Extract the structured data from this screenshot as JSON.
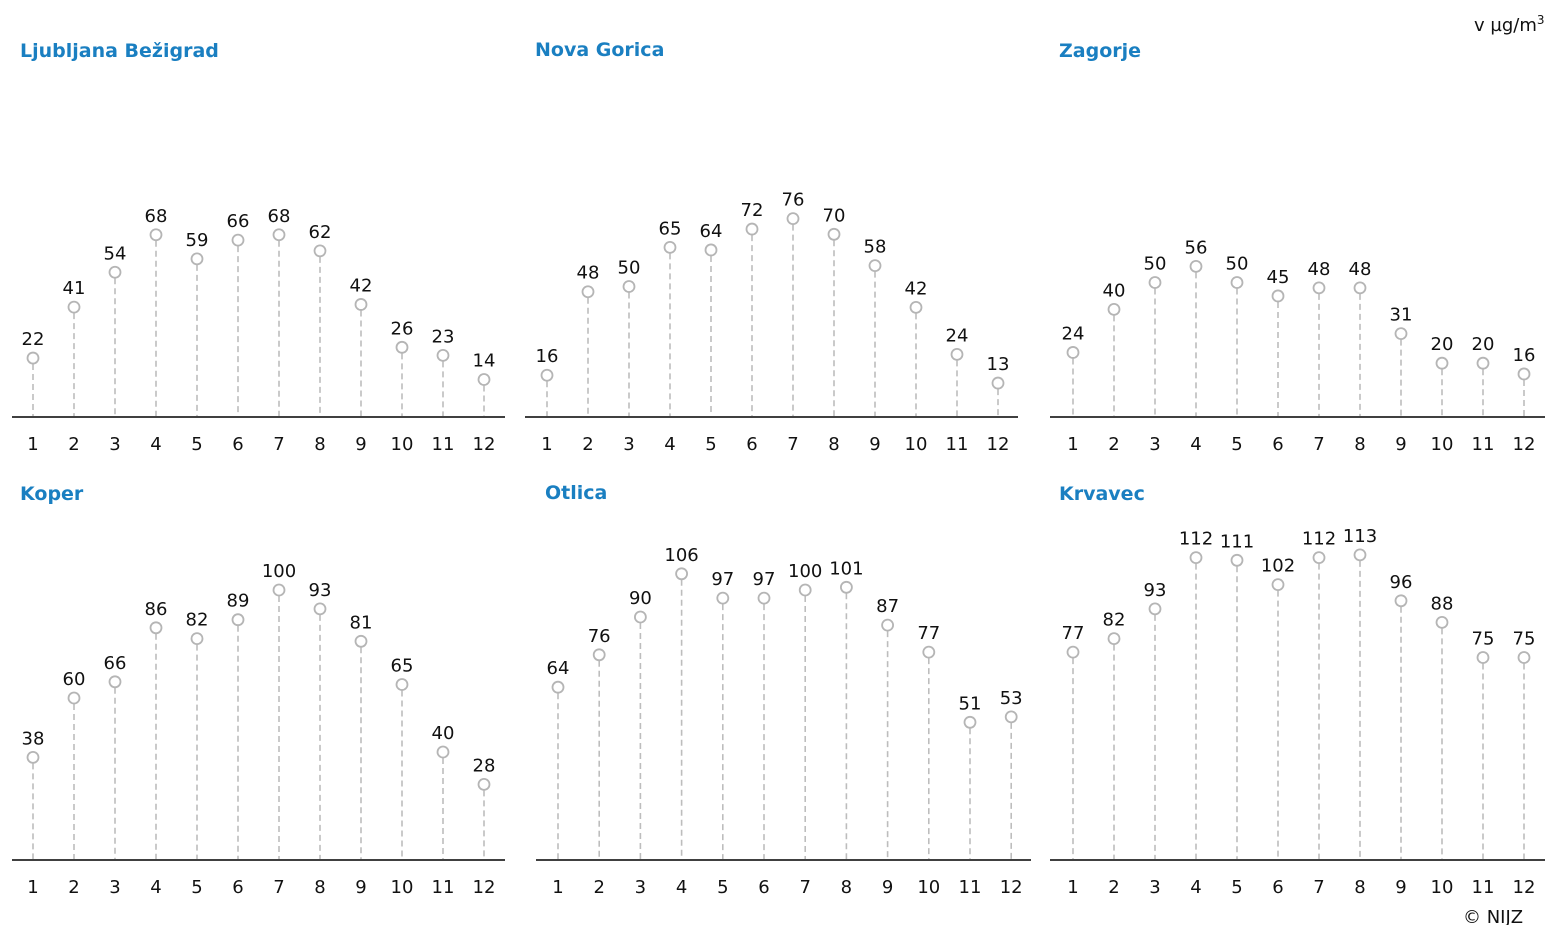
{
  "unit": {
    "prefix": "v µg/m",
    "sup": "3"
  },
  "credit": "© NIJZ",
  "colors": {
    "title": "#1a7fc1",
    "marker": "#b5b5b5",
    "stem": "#bdbdbd",
    "baseline": "#000000",
    "text": "#111111"
  },
  "chart_data": [
    {
      "type": "lollipop",
      "title": "Ljubljana Bežigrad",
      "categories": [
        "1",
        "2",
        "3",
        "4",
        "5",
        "6",
        "7",
        "8",
        "9",
        "10",
        "11",
        "12"
      ],
      "values": [
        22,
        41,
        54,
        68,
        59,
        66,
        68,
        62,
        42,
        26,
        23,
        14
      ]
    },
    {
      "type": "lollipop",
      "title": "Nova Gorica",
      "categories": [
        "1",
        "2",
        "3",
        "4",
        "5",
        "6",
        "7",
        "8",
        "9",
        "10",
        "11",
        "12"
      ],
      "values": [
        16,
        48,
        50,
        65,
        64,
        72,
        76,
        70,
        58,
        42,
        24,
        13
      ]
    },
    {
      "type": "lollipop",
      "title": "Zagorje",
      "categories": [
        "1",
        "2",
        "3",
        "4",
        "5",
        "6",
        "7",
        "8",
        "9",
        "10",
        "11",
        "12"
      ],
      "values": [
        24,
        40,
        50,
        56,
        50,
        45,
        48,
        48,
        31,
        20,
        20,
        16
      ]
    },
    {
      "type": "lollipop",
      "title": "Koper",
      "categories": [
        "1",
        "2",
        "3",
        "4",
        "5",
        "6",
        "7",
        "8",
        "9",
        "10",
        "11",
        "12"
      ],
      "values": [
        38,
        60,
        66,
        86,
        82,
        89,
        100,
        93,
        81,
        65,
        40,
        28
      ]
    },
    {
      "type": "lollipop",
      "title": "Otlica",
      "categories": [
        "1",
        "2",
        "3",
        "4",
        "5",
        "6",
        "7",
        "8",
        "9",
        "10",
        "11",
        "12"
      ],
      "values": [
        64,
        76,
        90,
        106,
        97,
        97,
        100,
        101,
        87,
        77,
        51,
        53
      ]
    },
    {
      "type": "lollipop",
      "title": "Krvavec",
      "categories": [
        "1",
        "2",
        "3",
        "4",
        "5",
        "6",
        "7",
        "8",
        "9",
        "10",
        "11",
        "12"
      ],
      "values": [
        77,
        82,
        93,
        112,
        111,
        102,
        112,
        113,
        96,
        88,
        75,
        75
      ]
    }
  ]
}
